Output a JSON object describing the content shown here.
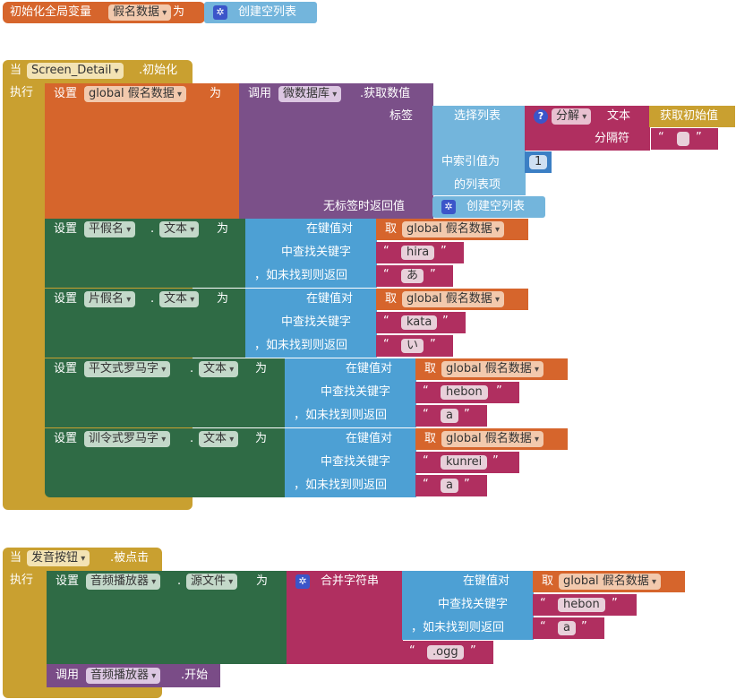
{
  "global_init": {
    "label": "初始化全局变量",
    "var_name": "假名数据",
    "as": "为",
    "value_block": "创建空列表"
  },
  "screen_init": {
    "when": "当",
    "component": "Screen_Detail",
    "event": ".初始化",
    "do": "执行",
    "set_label": "设置",
    "global_var": "global 假名数据",
    "as": "为",
    "call": "调用",
    "db_component": "微数据库",
    "db_method": ".获取数值",
    "tag_label": "标签",
    "select_list": "选择列表",
    "split_dropdown": "分解",
    "text_label": "文本",
    "get_initial": "获取初始值",
    "separator_label": "分隔符",
    "separator_value": "",
    "index_label_1": "中索引值为",
    "index_label_2": "的列表项",
    "index_value": "1",
    "no_tag_label": "无标签时返回值",
    "empty_list": "创建空列表",
    "get": "取",
    "in_dict": "在键值对",
    "find_key": "中查找关键字",
    "or_default": "，如未找到则返回",
    "text_prop": "文本",
    "dot": "."
  },
  "setters": [
    {
      "component": "平假名",
      "key": "hira",
      "default": "あ"
    },
    {
      "component": "片假名",
      "key": "kata",
      "default": "い"
    },
    {
      "component": "平文式罗马字",
      "key": "hebon",
      "default": "a"
    },
    {
      "component": "训令式罗马字",
      "key": "kunrei",
      "default": "a"
    }
  ],
  "button_click": {
    "when": "当",
    "component": "发音按钮",
    "event": ".被点击",
    "do": "执行",
    "set_label": "设置",
    "player": "音频播放器",
    "source_prop": "源文件",
    "as": "为",
    "join": "合并字符串",
    "in_dict": "在键值对",
    "find_key": "中查找关键字",
    "or_default": "，如未找到则返回",
    "get": "取",
    "global_var": "global 假名数据",
    "key": "hebon",
    "default": "a",
    "suffix": ".ogg",
    "call": "调用",
    "call_player": "音频播放器",
    "start": ".开始",
    "dot": "."
  },
  "colors": {
    "event": "#c9a030",
    "variable": "#d6652c",
    "list": "#73b5dc",
    "setter": "#2f6b45",
    "tinydb": "#7b5089",
    "dictionary": "#4da0d4",
    "text": "#b02f60"
  }
}
